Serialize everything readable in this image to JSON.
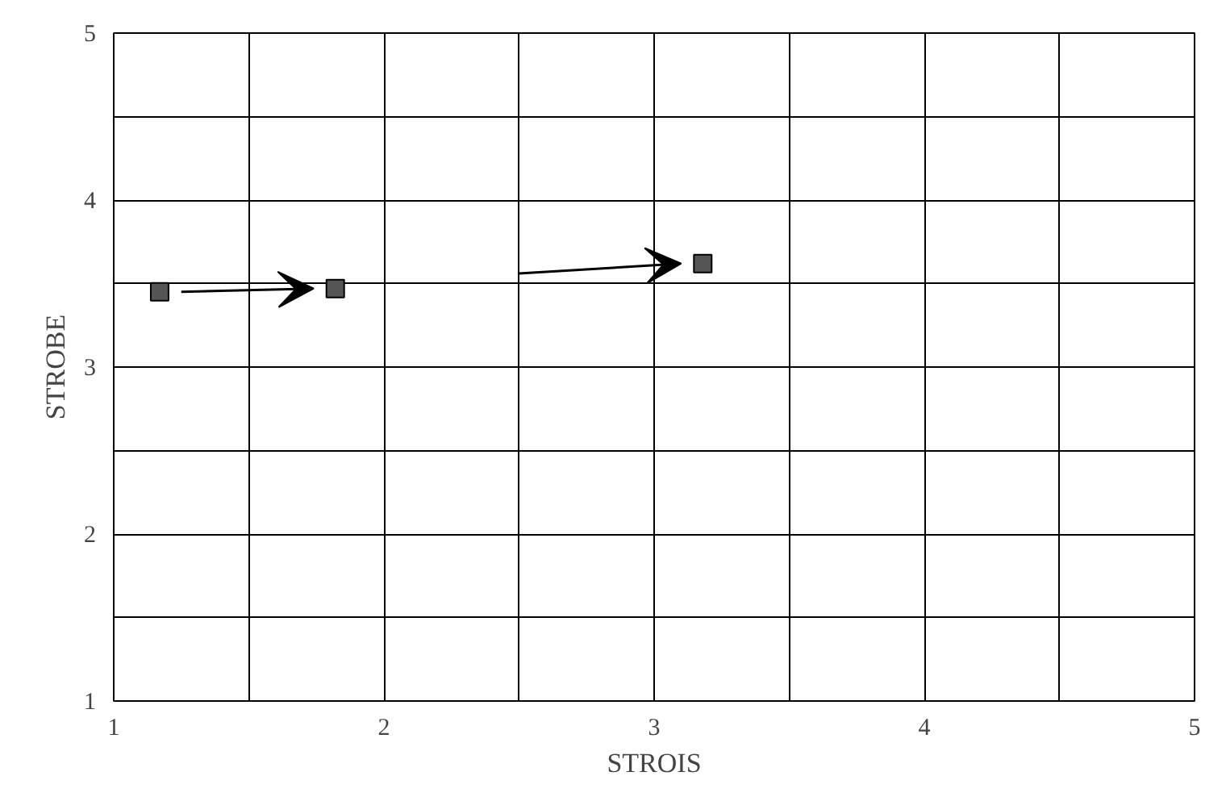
{
  "chart_data": {
    "type": "scatter",
    "xlabel": "STROIS",
    "ylabel": "STROBE",
    "x": [
      1.17,
      1.82,
      3.18
    ],
    "values": [
      3.45,
      3.47,
      3.62
    ],
    "color": "#555555",
    "marker": "square",
    "xlim": [
      1,
      5
    ],
    "ylim": [
      1,
      5
    ],
    "xticks": [
      1,
      {
        "value": 1.5,
        "label": null
      },
      2,
      {
        "value": 2.5,
        "label": null
      },
      3,
      {
        "value": 3.5,
        "label": null
      },
      4,
      {
        "value": 4.5,
        "label": null
      },
      5
    ],
    "yticks": [
      1,
      {
        "value": 1.5,
        "label": null
      },
      2,
      {
        "value": 2.5,
        "label": null
      },
      3,
      {
        "value": 3.5,
        "label": null
      },
      4,
      {
        "value": 4.5,
        "label": null
      },
      5
    ],
    "grid": true
  }
}
